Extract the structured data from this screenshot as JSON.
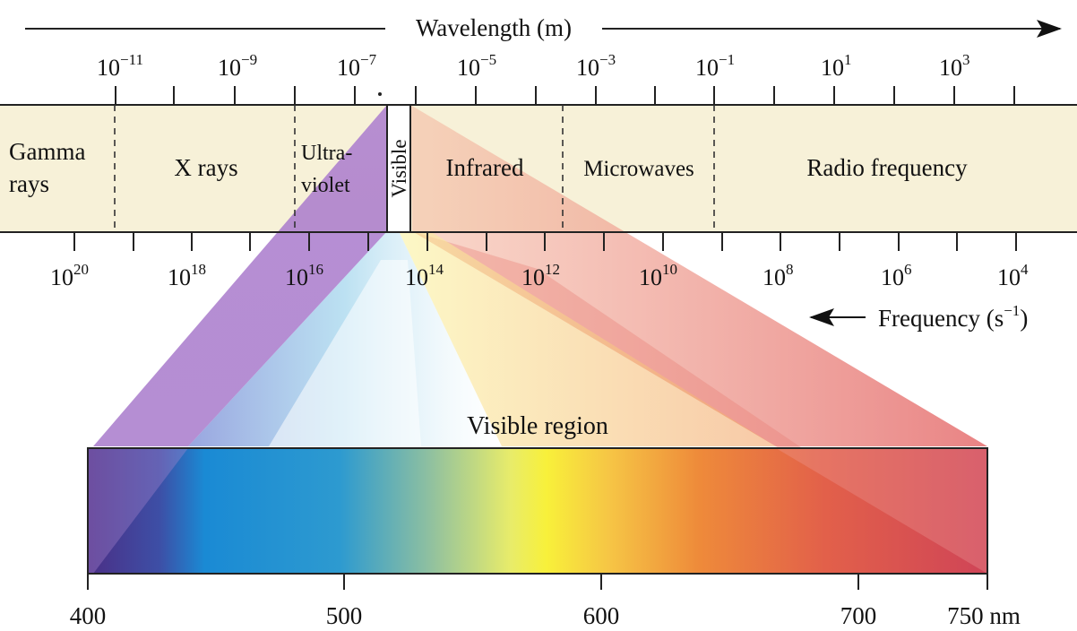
{
  "wavelength_axis": {
    "title": "Wavelength (m)",
    "ticks": [
      {
        "base": "10",
        "exp": "−11"
      },
      {
        "base": "10",
        "exp": "−9"
      },
      {
        "base": "10",
        "exp": "−7"
      },
      {
        "base": "10",
        "exp": "−5"
      },
      {
        "base": "10",
        "exp": "−3"
      },
      {
        "base": "10",
        "exp": "−1"
      },
      {
        "base": "10",
        "exp": "1"
      },
      {
        "base": "10",
        "exp": "3"
      }
    ]
  },
  "frequency_axis": {
    "title_text": "Frequency (s",
    "title_exp": "−1",
    "title_close": ")",
    "ticks": [
      {
        "base": "10",
        "exp": "20"
      },
      {
        "base": "10",
        "exp": "18"
      },
      {
        "base": "10",
        "exp": "16"
      },
      {
        "base": "10",
        "exp": "14"
      },
      {
        "base": "10",
        "exp": "12"
      },
      {
        "base": "10",
        "exp": "10"
      },
      {
        "base": "10",
        "exp": "8"
      },
      {
        "base": "10",
        "exp": "6"
      },
      {
        "base": "10",
        "exp": "4"
      }
    ]
  },
  "regions": {
    "gamma_line1": "Gamma",
    "gamma_line2": "rays",
    "xrays": "X rays",
    "uv_line1": "Ultra-",
    "uv_line2": "violet",
    "visible": "Visible",
    "infrared": "Infrared",
    "microwaves": "Microwaves",
    "radio": "Radio frequency"
  },
  "visible_region": {
    "title": "Visible region",
    "ticks": [
      "400",
      "500",
      "600",
      "700",
      "750 nm"
    ]
  },
  "colors": {
    "band": "#f7f1d8",
    "violet": "#6a3f9a",
    "blue": "#1b8fd6",
    "yellow": "#f6ef3a",
    "orange": "#ee8a3a",
    "red": "#d9485a"
  }
}
